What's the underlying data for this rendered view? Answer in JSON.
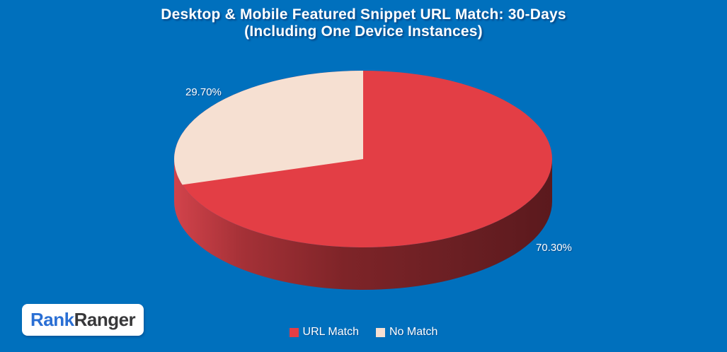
{
  "title": {
    "line1": "Desktop & Mobile Featured Snippet URL Match: 30-Days",
    "line2": "(Including One Device Instances)"
  },
  "chart_data": {
    "type": "pie",
    "style": "3d",
    "title": "Desktop & Mobile Featured Snippet URL Match: 30-Days (Including One Device Instances)",
    "slices": [
      {
        "label": "URL Match",
        "value": 70.3,
        "display": "70.30%",
        "color": "#E33E45"
      },
      {
        "label": "No Match",
        "value": 29.7,
        "display": "29.70%",
        "color": "#F6E0D2"
      }
    ],
    "rotation_start": "top",
    "direction": "clockwise",
    "legend_position": "bottom",
    "data_labels": "outside-percent"
  },
  "colors": {
    "background": "#0070BD",
    "text": "#FFFFFF",
    "pie_side_light": "#D2434B",
    "pie_side_mid": "#7E2428",
    "pie_side_dark": "#5B191D"
  },
  "logo": {
    "rank": "Rank",
    "ranger": "Ranger",
    "rank_color": "#2A6FD4",
    "ranger_color": "#38383A"
  }
}
